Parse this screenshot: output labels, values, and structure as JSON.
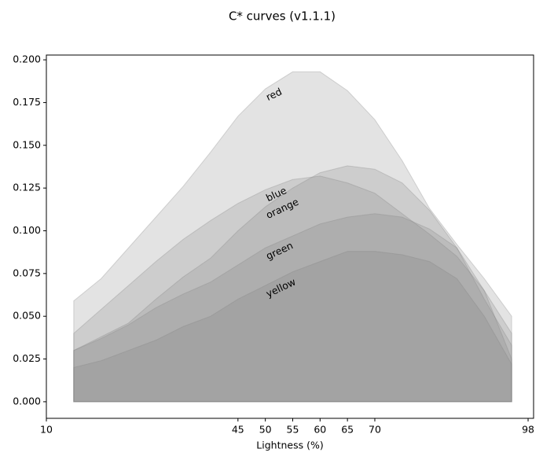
{
  "chart_data": {
    "type": "area",
    "title": "C* curves (v1.1.1)",
    "x_label": "Lightness (%)",
    "x": [
      15,
      20,
      25,
      30,
      35,
      40,
      45,
      50,
      55,
      60,
      65,
      70,
      75,
      80,
      85,
      90,
      95
    ],
    "series": [
      {
        "name": "red",
        "color": "#808080",
        "values": [
          0.059,
          0.072,
          0.09,
          0.108,
          0.126,
          0.146,
          0.167,
          0.183,
          0.193,
          0.193,
          0.182,
          0.165,
          0.141,
          0.113,
          0.092,
          0.072,
          0.05
        ]
      },
      {
        "name": "blue",
        "color": "#808080",
        "values": [
          0.04,
          0.054,
          0.068,
          0.082,
          0.095,
          0.106,
          0.116,
          0.124,
          0.13,
          0.132,
          0.128,
          0.122,
          0.11,
          0.098,
          0.085,
          0.065,
          0.04
        ]
      },
      {
        "name": "orange",
        "color": "#808080",
        "values": [
          0.03,
          0.038,
          0.046,
          0.06,
          0.073,
          0.084,
          0.1,
          0.114,
          0.125,
          0.134,
          0.138,
          0.136,
          0.128,
          0.112,
          0.09,
          0.06,
          0.033
        ]
      },
      {
        "name": "green",
        "color": "#808080",
        "values": [
          0.03,
          0.037,
          0.045,
          0.055,
          0.063,
          0.07,
          0.08,
          0.09,
          0.097,
          0.104,
          0.108,
          0.11,
          0.108,
          0.101,
          0.09,
          0.065,
          0.025
        ]
      },
      {
        "name": "yellow",
        "color": "#808080",
        "values": [
          0.02,
          0.024,
          0.03,
          0.036,
          0.044,
          0.05,
          0.06,
          0.068,
          0.076,
          0.082,
          0.088,
          0.088,
          0.086,
          0.082,
          0.072,
          0.05,
          0.022
        ]
      }
    ],
    "xlim": [
      10,
      99
    ],
    "xticks": [
      10,
      45,
      50,
      55,
      60,
      65,
      70,
      98
    ],
    "ylim": [
      -0.0097,
      0.2028
    ],
    "yticks": [
      {
        "value": 0,
        "label": "0.000"
      },
      {
        "value": 0.025,
        "label": "0.025"
      },
      {
        "value": 0.05,
        "label": "0.050"
      },
      {
        "value": 0.075,
        "label": "0.075"
      },
      {
        "value": 0.1,
        "label": "0.100"
      },
      {
        "value": 0.125,
        "label": "0.125"
      },
      {
        "value": 0.15,
        "label": "0.150"
      },
      {
        "value": 0.175,
        "label": "0.175"
      },
      {
        "value": 0.2,
        "label": "0.200"
      }
    ]
  }
}
